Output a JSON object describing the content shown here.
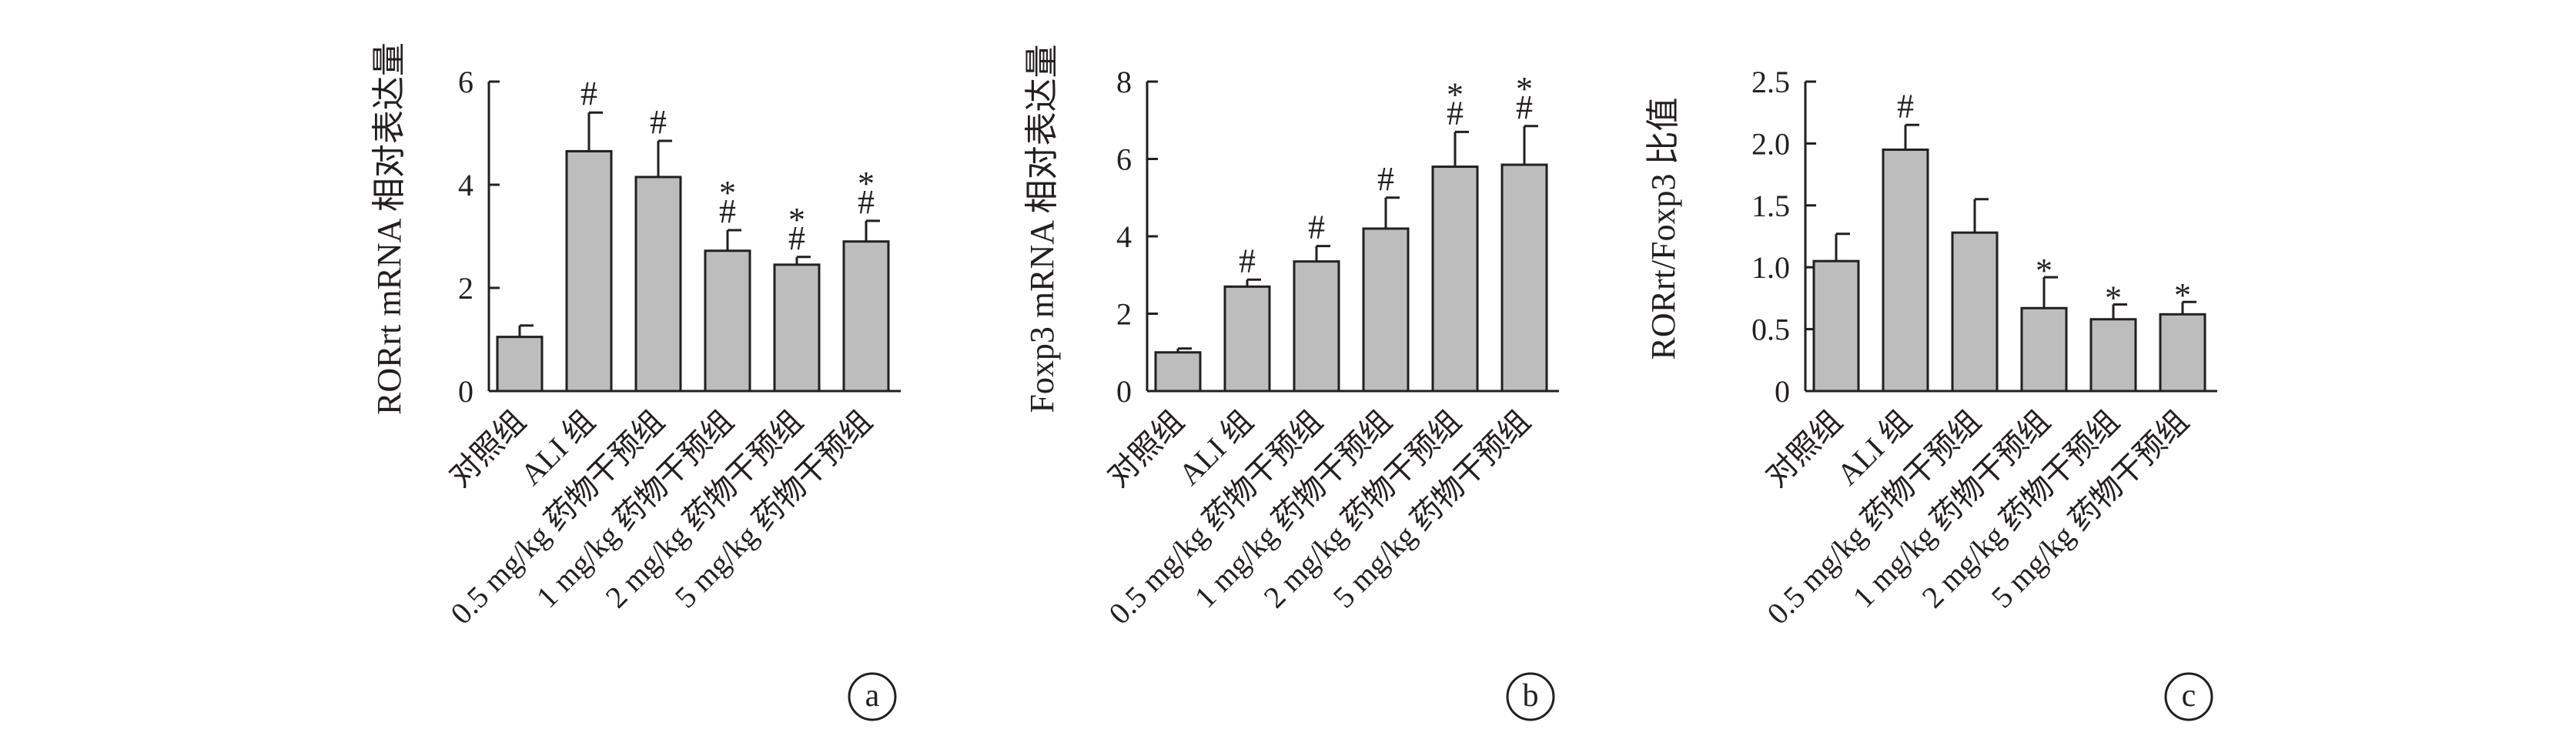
{
  "colors": {
    "bar": "#bdbdbd",
    "ink": "#231f20",
    "background": "#ffffff"
  },
  "chart_data": [
    {
      "type": "bar",
      "panel_label": "a",
      "ylabel": "RORrt mRNA 相对表达量",
      "ylim": [
        0,
        6
      ],
      "yticks": [
        "0",
        "2",
        "4",
        "6"
      ],
      "ytick_values": [
        0,
        2,
        4,
        6
      ],
      "categories": [
        "对照组",
        "ALI 组",
        "0.5 mg/kg 药物干预组",
        "1 mg/kg 药物干预组",
        "2 mg/kg 药物干预组",
        "5 mg/kg 药物干预组"
      ],
      "values": [
        1.05,
        4.65,
        4.15,
        2.72,
        2.45,
        2.9
      ],
      "error": [
        0.22,
        0.75,
        0.7,
        0.4,
        0.15,
        0.4
      ],
      "significance": [
        "",
        "#",
        "#",
        "#*",
        "#*",
        "#*"
      ]
    },
    {
      "type": "bar",
      "panel_label": "b",
      "ylabel": "Foxp3 mRNA 相对表达量",
      "ylim": [
        0,
        8
      ],
      "yticks": [
        "0",
        "2",
        "4",
        "6",
        "8"
      ],
      "ytick_values": [
        0,
        2,
        4,
        6,
        8
      ],
      "categories": [
        "对照组",
        "ALI 组",
        "0.5 mg/kg 药物干预组",
        "1 mg/kg 药物干预组",
        "2 mg/kg 药物干预组",
        "5 mg/kg 药物干预组"
      ],
      "values": [
        1.0,
        2.7,
        3.35,
        4.2,
        5.8,
        5.85
      ],
      "error": [
        0.1,
        0.18,
        0.4,
        0.8,
        0.9,
        1.0
      ],
      "significance": [
        "",
        "#",
        "#",
        "#",
        "#*",
        "#*"
      ]
    },
    {
      "type": "bar",
      "panel_label": "c",
      "ylabel": "RORrt/Foxp3 比值",
      "ylim": [
        0,
        2.5
      ],
      "yticks": [
        "0",
        "0.5",
        "1.0",
        "1.5",
        "2.0",
        "2.5"
      ],
      "ytick_values": [
        0,
        0.5,
        1.0,
        1.5,
        2.0,
        2.5
      ],
      "categories": [
        "对照组",
        "ALI 组",
        "0.5 mg/kg 药物干预组",
        "1 mg/kg 药物干预组",
        "2 mg/kg 药物干预组",
        "5 mg/kg 药物干预组"
      ],
      "values": [
        1.05,
        1.95,
        1.28,
        0.67,
        0.58,
        0.62
      ],
      "error": [
        0.22,
        0.2,
        0.27,
        0.25,
        0.12,
        0.1
      ],
      "significance": [
        "",
        "#",
        "",
        "*",
        "*",
        "*"
      ]
    }
  ]
}
